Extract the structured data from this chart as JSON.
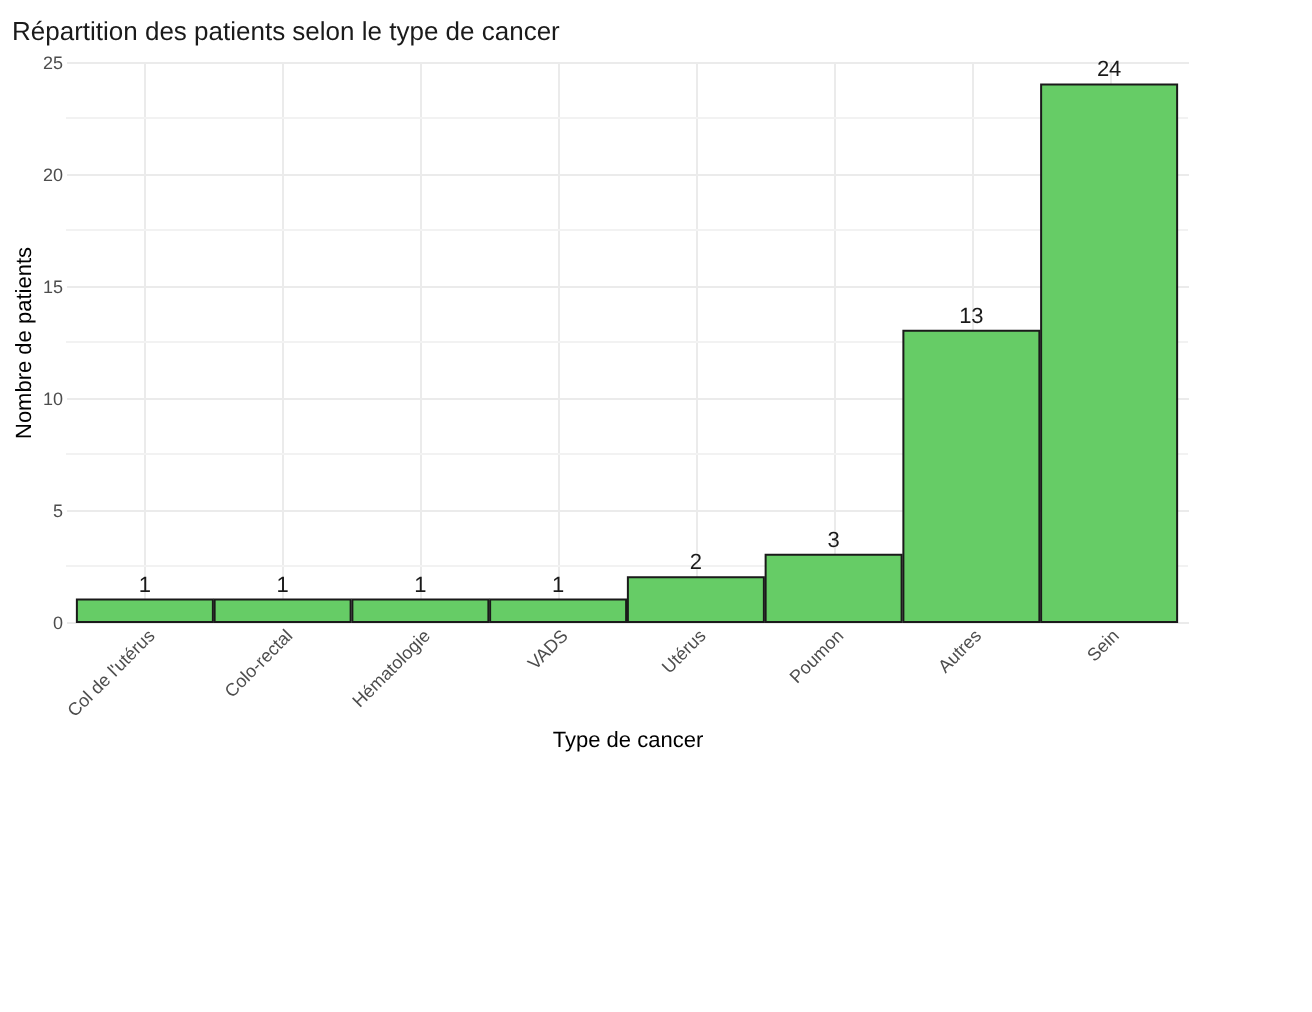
{
  "chart_data": {
    "type": "bar",
    "title": "Répartition des patients selon le type de cancer",
    "xlabel": "Type de cancer",
    "ylabel": "Nombre de patients",
    "categories": [
      "Col de l'utérus",
      "Colo-rectal",
      "Hématologie",
      "VADS",
      "Utérus",
      "Poumon",
      "Autres",
      "Sein"
    ],
    "values": [
      1,
      1,
      1,
      1,
      2,
      3,
      13,
      24
    ],
    "color": "#66cc66",
    "data_labels": true,
    "grid": true,
    "ylim": [
      0,
      25
    ],
    "yticks": [
      0,
      {
        "value": 2.5,
        "label": null
      },
      5,
      {
        "value": 7.5,
        "label": null
      },
      10,
      {
        "value": 12.5,
        "label": null
      },
      15,
      {
        "value": 17.5,
        "label": null
      },
      20,
      {
        "value": 22.5,
        "label": null
      },
      25
    ]
  }
}
